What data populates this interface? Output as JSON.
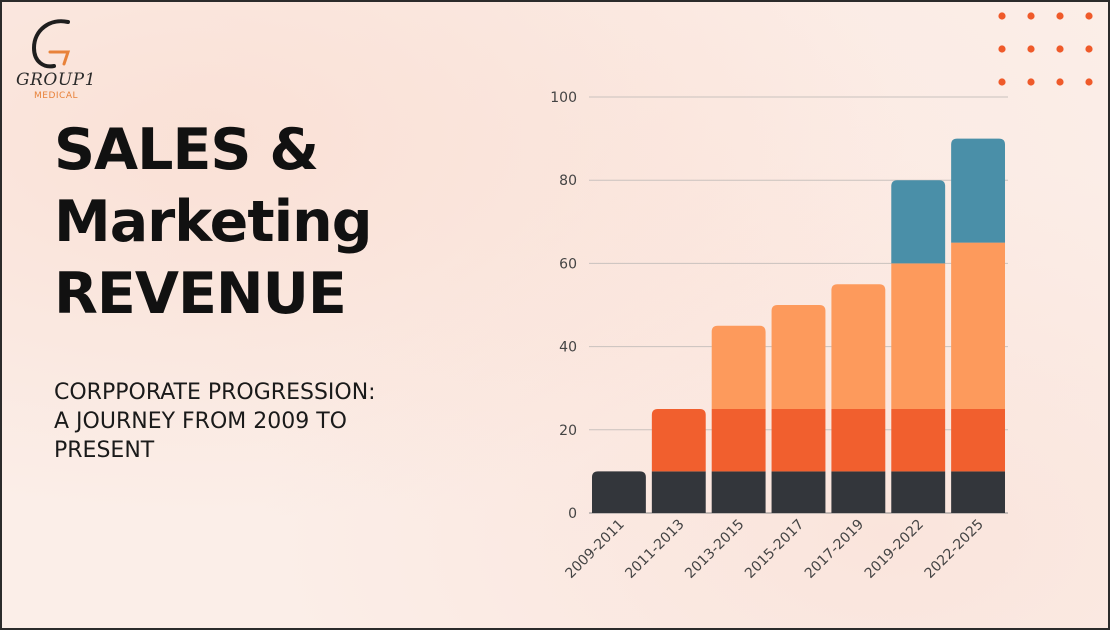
{
  "logo": {
    "icon": "g-swoosh-logo-icon",
    "name": "GROUP1",
    "sub": "MEDICAL"
  },
  "title": {
    "line1": "SALES &",
    "line2": "Marketing",
    "line3": "REVENUE"
  },
  "subtitle": {
    "line1": "CORPPORATE PROGRESSION:",
    "line2": "A JOURNEY FROM 2009 TO",
    "line3": "PRESENT"
  },
  "colors": {
    "dark": "#33363b",
    "red_orange": "#f15f2e",
    "light_orange": "#fd9a5c",
    "teal": "#4a8fa8",
    "dots": "#ef5a2a"
  },
  "chart_data": {
    "type": "bar",
    "stacked": true,
    "categories": [
      "2009-2011",
      "2011-2013",
      "2013-2015",
      "2015-2017",
      "2017-2019",
      "2019-2022",
      "2022-2025"
    ],
    "series": [
      {
        "values": [
          10,
          10,
          10,
          10,
          10,
          10,
          10
        ],
        "color": "#33363b"
      },
      {
        "values": [
          0,
          15,
          15,
          15,
          15,
          15,
          15
        ],
        "color": "#f15f2e"
      },
      {
        "values": [
          0,
          0,
          20,
          25,
          30,
          35,
          40
        ],
        "color": "#fd9a5c"
      },
      {
        "values": [
          0,
          0,
          0,
          0,
          0,
          20,
          25
        ],
        "color": "#4a8fa8"
      }
    ],
    "ylim": [
      0,
      100
    ],
    "yticks": [
      "0",
      "20",
      "40",
      "60",
      "80",
      "100"
    ],
    "grid": true,
    "legend": "none"
  }
}
